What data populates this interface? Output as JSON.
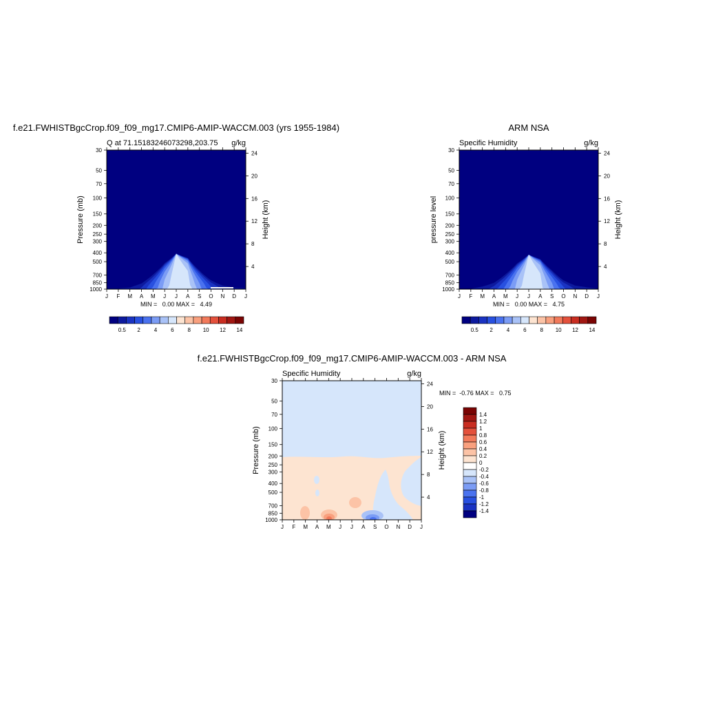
{
  "chart_data": [
    {
      "type": "heatmap",
      "title": "f.e21.FWHISTBgcCrop.f09_f09_mg17.CMIP6-AMIP-WACCM.003 (yrs 1955-1984)",
      "subtitle_left": "Q at 71.15183246073298,203.75",
      "subtitle_right": "g/kg",
      "ylabel": "Pressure (mb)",
      "ylabel_right": "Height (km)",
      "x_ticks": [
        "J",
        "F",
        "M",
        "A",
        "M",
        "J",
        "J",
        "A",
        "S",
        "O",
        "N",
        "D",
        "J"
      ],
      "y_ticks": [
        30,
        50,
        70,
        100,
        150,
        200,
        250,
        300,
        400,
        500,
        700,
        850,
        1000
      ],
      "y_right_ticks": [
        4,
        8,
        12,
        16,
        20,
        24
      ],
      "stats": "MIN =   0.00 MAX =   4.49",
      "colorbar": {
        "labels": [
          "0.5",
          "2",
          "4",
          "6",
          "8",
          "10",
          "12",
          "14"
        ]
      },
      "profile": {
        "months": [
          0,
          1,
          2,
          3,
          4,
          5,
          6,
          7,
          8,
          9,
          10,
          11,
          12
        ],
        "surface_q": [
          0.6,
          0.6,
          0.7,
          1.2,
          2.3,
          3.6,
          4.49,
          4.2,
          3.0,
          1.8,
          1.0,
          0.7,
          0.6
        ],
        "top_pressure": [
          720,
          730,
          700,
          600,
          500,
          440,
          410,
          430,
          500,
          600,
          680,
          720,
          720
        ]
      }
    },
    {
      "type": "heatmap",
      "title": "ARM NSA",
      "subtitle_left": "Specific Humidity",
      "subtitle_right": "g/kg",
      "ylabel": "pressure level",
      "ylabel_right": "Height (km)",
      "x_ticks": [
        "J",
        "F",
        "M",
        "A",
        "M",
        "J",
        "J",
        "A",
        "S",
        "O",
        "N",
        "D",
        "J"
      ],
      "y_ticks": [
        30,
        50,
        70,
        100,
        150,
        200,
        250,
        300,
        400,
        500,
        700,
        850,
        1000
      ],
      "y_right_ticks": [
        4,
        8,
        12,
        16,
        20,
        24
      ],
      "stats": "MIN =   0.00 MAX =   4.75",
      "colorbar": {
        "labels": [
          "0.5",
          "2",
          "4",
          "6",
          "8",
          "10",
          "12",
          "14"
        ]
      },
      "profile": {
        "months": [
          0,
          1,
          2,
          3,
          4,
          5,
          6,
          7,
          8,
          9,
          10,
          11,
          12
        ],
        "surface_q": [
          0.6,
          0.6,
          0.9,
          1.4,
          2.5,
          3.8,
          4.75,
          4.4,
          3.2,
          1.9,
          1.1,
          0.8,
          0.6
        ],
        "top_pressure": [
          740,
          760,
          700,
          600,
          500,
          440,
          420,
          440,
          500,
          600,
          690,
          730,
          740
        ]
      }
    },
    {
      "type": "heatmap",
      "title": "f.e21.FWHISTBgcCrop.f09_f09_mg17.CMIP6-AMIP-WACCM.003 - ARM NSA",
      "subtitle_left": "Specific Humidity",
      "subtitle_right": "g/kg",
      "ylabel": "Pressure (mb)",
      "ylabel_right": "Height (km)",
      "x_ticks": [
        "J",
        "F",
        "M",
        "A",
        "M",
        "J",
        "J",
        "A",
        "S",
        "O",
        "N",
        "D",
        "J"
      ],
      "y_ticks": [
        30,
        50,
        70,
        100,
        150,
        200,
        250,
        300,
        400,
        500,
        700,
        850,
        1000
      ],
      "y_right_ticks": [
        4,
        8,
        12,
        16,
        20,
        24
      ],
      "stats": "MIN =  -0.76 MAX =   0.75",
      "colorbar": {
        "labels": [
          "1.4",
          "1.2",
          "1",
          "0.8",
          "0.6",
          "0.4",
          "0.2",
          "0",
          "-0.2",
          "-0.4",
          "-0.6",
          "-0.8",
          "-1",
          "-1.2",
          "-1.4"
        ]
      },
      "background_value": -0.1,
      "positive_region_top_pressure": 200,
      "extremes": {
        "max": {
          "month": 4.2,
          "pressure": 1000,
          "value": 0.75
        },
        "min": {
          "month": 8.0,
          "pressure": 1000,
          "value": -0.76
        }
      }
    }
  ],
  "colors": {
    "seq_scale": [
      "#000080",
      "#0d1a9e",
      "#1a33c2",
      "#2850e0",
      "#4a72ef",
      "#7b9cf5",
      "#a9c2f7",
      "#d6e6fb",
      "#fde4d1",
      "#fcc3a6",
      "#f9a07e",
      "#f27a5b",
      "#e4513c",
      "#c92d21",
      "#a11712",
      "#7a0403"
    ],
    "div_scale": [
      "#7a0403",
      "#a11712",
      "#c92d21",
      "#e4513c",
      "#f27a5b",
      "#f9a07e",
      "#fcc3a6",
      "#fde4d1",
      "#ffffff",
      "#d6e6fb",
      "#a9c2f7",
      "#7b9cf5",
      "#4a72ef",
      "#2850e0",
      "#1a33c2",
      "#000080"
    ]
  }
}
